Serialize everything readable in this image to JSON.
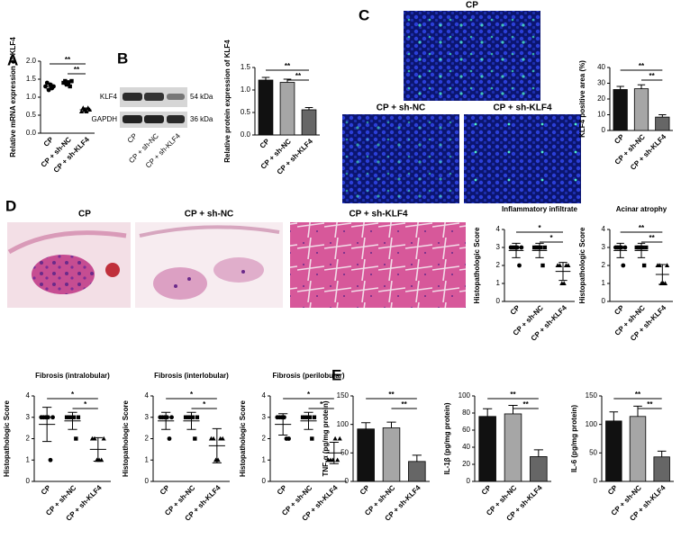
{
  "panel_letters": [
    "A",
    "B",
    "C",
    "D",
    "E"
  ],
  "western_blot": {
    "bands": [
      "KLF4",
      "GAPDH"
    ],
    "sizes": [
      "54 kDa",
      "36 kDa"
    ],
    "lanes": [
      "CP",
      "CP + sh-NC",
      "CP + sh-KLF4"
    ]
  },
  "immunofluorescence": {
    "labels": [
      "CP",
      "CP + sh-NC",
      "CP + sh-KLF4"
    ]
  },
  "he_staining": {
    "labels": [
      "CP",
      "CP + sh-NC",
      "CP + sh-KLF4"
    ]
  },
  "chart_data": [
    {
      "type": "dot",
      "y_label": "Relative mRNA expression of KLF4",
      "categories": [
        "CP",
        "CP + sh-NC",
        "CP + sh-KLF4"
      ],
      "points": [
        [
          1.3,
          1.4,
          1.2,
          1.35,
          1.25,
          1.3
        ],
        [
          1.4,
          1.45,
          1.35,
          1.4,
          1.3,
          1.45
        ],
        [
          0.6,
          0.7,
          0.65,
          0.6,
          0.7,
          0.65
        ]
      ],
      "means": [
        1.3,
        1.4,
        0.65
      ],
      "errors": [
        0.07,
        0.06,
        0.05
      ],
      "ylim": [
        0,
        2
      ],
      "yticks": [
        {
          "value": 0,
          "label": "0.0"
        },
        {
          "value": 0.5,
          "label": "0.5"
        },
        {
          "value": 1,
          "label": "1.0"
        },
        {
          "value": 1.5,
          "label": "1.5"
        },
        {
          "value": 2,
          "label": "2.0"
        }
      ],
      "significance": [
        "**",
        "**"
      ]
    },
    {
      "type": "bar",
      "y_label": "Relative protein expression of KLF4",
      "categories": [
        "CP",
        "CP + sh-NC",
        "CP + sh-KLF4"
      ],
      "values": [
        1.22,
        1.17,
        0.56
      ],
      "errors": [
        0.06,
        0.07,
        0.05
      ],
      "colors": [
        "#111111",
        "#a6a6a6",
        "#666666"
      ],
      "ylim": [
        0,
        1.5
      ],
      "yticks": [
        {
          "value": 0,
          "label": "0.0"
        },
        {
          "value": 0.5,
          "label": "0.5"
        },
        {
          "value": 1,
          "label": "1.0"
        },
        {
          "value": 1.5,
          "label": "1.5"
        }
      ],
      "significance": [
        "**",
        "**"
      ]
    },
    {
      "type": "bar",
      "y_label": "KLF4 positive area (%)",
      "categories": [
        "CP",
        "CP + sh-NC",
        "CP + sh-KLF4"
      ],
      "values": [
        26,
        26.5,
        8.5
      ],
      "errors": [
        2,
        2.5,
        1.5
      ],
      "colors": [
        "#111111",
        "#a6a6a6",
        "#666666"
      ],
      "ylim": [
        0,
        40
      ],
      "yticks": [
        0,
        10,
        20,
        30,
        40
      ],
      "significance": [
        "**",
        "**"
      ]
    },
    {
      "type": "dot",
      "title": "Inflammatory infiltrate",
      "y_label": "Histopathologic Score",
      "categories": [
        "CP",
        "CP + sh-NC",
        "CP + sh-KLF4"
      ],
      "points": [
        [
          3,
          3,
          3,
          3,
          2,
          3
        ],
        [
          3,
          3,
          3,
          3,
          2,
          3
        ],
        [
          2,
          2,
          1,
          1,
          2,
          2
        ]
      ],
      "means": [
        2.83,
        2.83,
        1.67
      ],
      "errors": [
        0.4,
        0.4,
        0.5
      ],
      "ylim": [
        0,
        4
      ],
      "yticks": [
        0,
        1,
        2,
        3,
        4
      ],
      "significance": [
        "*",
        "*"
      ]
    },
    {
      "type": "dot",
      "title": "Acinar atrophy",
      "y_label": "Histopathologic Score",
      "categories": [
        "CP",
        "CP + sh-NC",
        "CP + sh-KLF4"
      ],
      "points": [
        [
          3,
          3,
          3,
          3,
          2,
          3
        ],
        [
          3,
          3,
          3,
          3,
          2,
          3
        ],
        [
          2,
          2,
          1,
          1,
          1,
          2
        ]
      ],
      "means": [
        2.83,
        2.83,
        1.5
      ],
      "errors": [
        0.4,
        0.4,
        0.55
      ],
      "ylim": [
        0,
        4
      ],
      "yticks": [
        0,
        1,
        2,
        3,
        4
      ],
      "significance": [
        "**",
        "**"
      ]
    },
    {
      "type": "dot",
      "title": "Fibrosis (intralobular)",
      "y_label": "Histopathologic Score",
      "categories": [
        "CP",
        "CP + sh-NC",
        "CP + sh-KLF4"
      ],
      "points": [
        [
          3,
          3,
          3,
          3,
          1,
          3
        ],
        [
          3,
          3,
          3,
          3,
          2,
          3
        ],
        [
          2,
          2,
          1,
          1,
          1,
          2
        ]
      ],
      "means": [
        2.67,
        2.83,
        1.5
      ],
      "errors": [
        0.8,
        0.4,
        0.55
      ],
      "ylim": [
        0,
        4
      ],
      "yticks": [
        0,
        1,
        2,
        3,
        4
      ],
      "significance": [
        "*",
        "*"
      ]
    },
    {
      "type": "dot",
      "title": "Fibrosis (interlobular)",
      "y_label": "Histopathologic Score",
      "categories": [
        "CP",
        "CP + sh-NC",
        "CP + sh-KLF4"
      ],
      "points": [
        [
          3,
          3,
          3,
          3,
          2,
          3
        ],
        [
          3,
          3,
          3,
          3,
          2,
          3
        ],
        [
          2,
          2,
          1,
          1,
          2,
          2
        ]
      ],
      "means": [
        2.83,
        2.83,
        1.67
      ],
      "errors": [
        0.4,
        0.4,
        0.8
      ],
      "ylim": [
        0,
        4
      ],
      "yticks": [
        0,
        1,
        2,
        3,
        4
      ],
      "significance": [
        "*",
        "*"
      ]
    },
    {
      "type": "dot",
      "title": "Fibrosis (perilobular)",
      "y_label": "Histopathologic Score",
      "categories": [
        "CP",
        "CP + sh-NC",
        "CP + sh-KLF4"
      ],
      "points": [
        [
          3,
          3,
          3,
          3,
          2,
          2
        ],
        [
          3,
          3,
          3,
          3,
          2,
          3
        ],
        [
          1,
          1,
          1,
          2,
          1,
          2
        ]
      ],
      "means": [
        2.67,
        2.83,
        1.33
      ],
      "errors": [
        0.5,
        0.4,
        0.5
      ],
      "ylim": [
        0,
        4
      ],
      "yticks": [
        0,
        1,
        2,
        3,
        4
      ],
      "significance": [
        "*",
        "*"
      ]
    },
    {
      "type": "bar",
      "y_label": "TNF-α (pg/mg protein)",
      "categories": [
        "CP",
        "CP + sh-NC",
        "CP + sh-KLF4"
      ],
      "values": [
        92,
        94,
        35
      ],
      "errors": [
        11,
        10,
        11
      ],
      "colors": [
        "#111111",
        "#a6a6a6",
        "#666666"
      ],
      "ylim": [
        0,
        150
      ],
      "yticks": [
        0,
        50,
        100,
        150
      ],
      "significance": [
        "**",
        "**"
      ]
    },
    {
      "type": "bar",
      "y_label": "IL-1β (pg/mg protein)",
      "categories": [
        "CP",
        "CP + sh-NC",
        "CP + sh-KLF4"
      ],
      "values": [
        76,
        79,
        29
      ],
      "errors": [
        9,
        10,
        8
      ],
      "colors": [
        "#111111",
        "#a6a6a6",
        "#666666"
      ],
      "ylim": [
        0,
        100
      ],
      "yticks": [
        0,
        20,
        40,
        60,
        80,
        100
      ],
      "significance": [
        "**",
        "**"
      ]
    },
    {
      "type": "bar",
      "y_label": "IL-6 (pg/mg protein)",
      "categories": [
        "CP",
        "CP + sh-NC",
        "CP + sh-KLF4"
      ],
      "values": [
        106,
        114,
        43
      ],
      "errors": [
        16,
        18,
        10
      ],
      "colors": [
        "#111111",
        "#a6a6a6",
        "#666666"
      ],
      "ylim": [
        0,
        150
      ],
      "yticks": [
        0,
        50,
        100,
        150
      ],
      "significance": [
        "**",
        "**"
      ]
    }
  ]
}
